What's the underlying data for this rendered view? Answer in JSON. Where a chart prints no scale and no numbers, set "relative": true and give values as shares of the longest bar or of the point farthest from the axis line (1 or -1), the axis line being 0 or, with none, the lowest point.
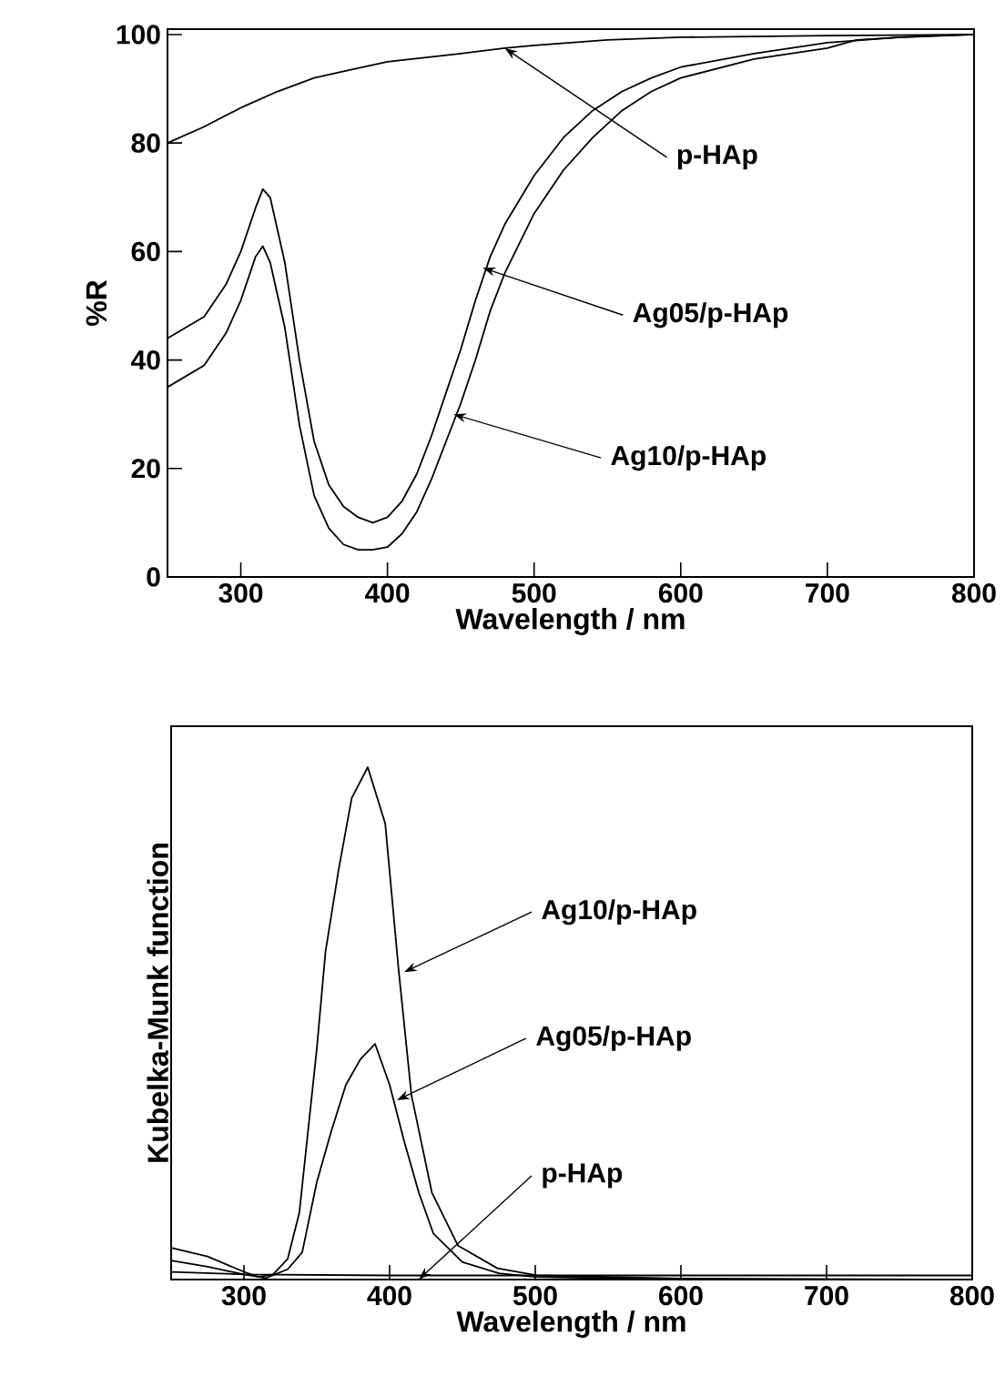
{
  "chart_data": [
    {
      "type": "line",
      "xlabel": "Wavelength / nm",
      "ylabel": "%R",
      "xlim": [
        250,
        800
      ],
      "xticks": [
        300,
        400,
        500,
        600,
        700,
        800
      ],
      "ylim": [
        0,
        101
      ],
      "yticks": [
        0,
        20,
        40,
        60,
        80,
        100
      ],
      "series": [
        {
          "color": "#000000",
          "x": [
            250,
            275,
            300,
            325,
            350,
            375,
            400,
            450,
            480,
            500,
            550,
            600,
            700,
            800
          ],
          "values": [
            80,
            83,
            86.5,
            89.5,
            92,
            93.5,
            95,
            96.5,
            97.5,
            98,
            99,
            99.5,
            99.8,
            100
          ]
        },
        {
          "color": "#000000",
          "x": [
            250,
            275,
            290,
            300,
            310,
            315,
            320,
            330,
            340,
            350,
            360,
            370,
            380,
            390,
            400,
            410,
            420,
            430,
            440,
            450,
            460,
            470,
            480,
            500,
            520,
            540,
            560,
            580,
            600,
            650,
            700,
            750,
            800
          ],
          "values": [
            44,
            48,
            54,
            60,
            68,
            71.5,
            70,
            58,
            40,
            25,
            17,
            13,
            11,
            10,
            11,
            14,
            19,
            26,
            34,
            42,
            51,
            59,
            65,
            74,
            81,
            86,
            89.5,
            92,
            94,
            96.5,
            98.5,
            99.5,
            100
          ]
        },
        {
          "color": "#000000",
          "x": [
            250,
            275,
            290,
            300,
            310,
            315,
            320,
            330,
            340,
            350,
            360,
            370,
            380,
            390,
            400,
            410,
            420,
            430,
            440,
            450,
            460,
            470,
            480,
            500,
            520,
            540,
            560,
            580,
            600,
            650,
            700,
            720,
            750,
            800
          ],
          "values": [
            35,
            39,
            45,
            51,
            59,
            61,
            58,
            46,
            28,
            15,
            9,
            6,
            5,
            5,
            5.5,
            8,
            12,
            18,
            25,
            32,
            40,
            49,
            56,
            67,
            75,
            81,
            86,
            89.5,
            92,
            95.5,
            97.5,
            99,
            99.5,
            100
          ]
        }
      ],
      "annotations": [
        {
          "text": "p-HAp",
          "x": 480,
          "y": 97.5
        },
        {
          "text": "Ag05/p-HAp",
          "x": 465,
          "y": 57
        },
        {
          "text": "Ag10/p-HAp",
          "x": 445,
          "y": 30
        }
      ]
    },
    {
      "type": "line",
      "xlabel": "Wavelength / nm",
      "ylabel": "Kubelka-Munk function",
      "xlim": [
        250,
        800
      ],
      "xticks": [
        300,
        400,
        500,
        600,
        700,
        800
      ],
      "relative": true,
      "series": [
        {
          "color": "#000000",
          "x": [
            250,
            275,
            300,
            310,
            320,
            330,
            338,
            350,
            356,
            365,
            374,
            385,
            397,
            406,
            415,
            429,
            447,
            474,
            501,
            600,
            800
          ],
          "values": [
            0.062,
            0.045,
            0.015,
            0.005,
            0.01,
            0.04,
            0.13,
            0.45,
            0.64,
            0.8,
            0.94,
            1.0,
            0.89,
            0.61,
            0.36,
            0.17,
            0.066,
            0.022,
            0.008,
            0.002,
            0
          ]
        },
        {
          "color": "#000000",
          "x": [
            250,
            275,
            300,
            315,
            330,
            340,
            350,
            360,
            370,
            380,
            390,
            400,
            410,
            420,
            430,
            450,
            475,
            500,
            600,
            800
          ],
          "values": [
            0.037,
            0.025,
            0.01,
            0.003,
            0.02,
            0.053,
            0.19,
            0.29,
            0.38,
            0.43,
            0.46,
            0.38,
            0.27,
            0.17,
            0.09,
            0.034,
            0.012,
            0.005,
            0,
            0
          ]
        },
        {
          "color": "#000000",
          "x": [
            250,
            300,
            400,
            500,
            600,
            700,
            800
          ],
          "values": [
            0.015,
            0.01,
            0.008,
            0.008,
            0.008,
            0.008,
            0.008
          ]
        }
      ],
      "annotations": [
        {
          "text": "Ag10/p-HAp",
          "x": 410,
          "y": 0.6
        },
        {
          "text": "Ag05/p-HAp",
          "x": 405,
          "y": 0.35
        },
        {
          "text": "p-HAp",
          "x": 420,
          "y": 0
        }
      ]
    }
  ]
}
